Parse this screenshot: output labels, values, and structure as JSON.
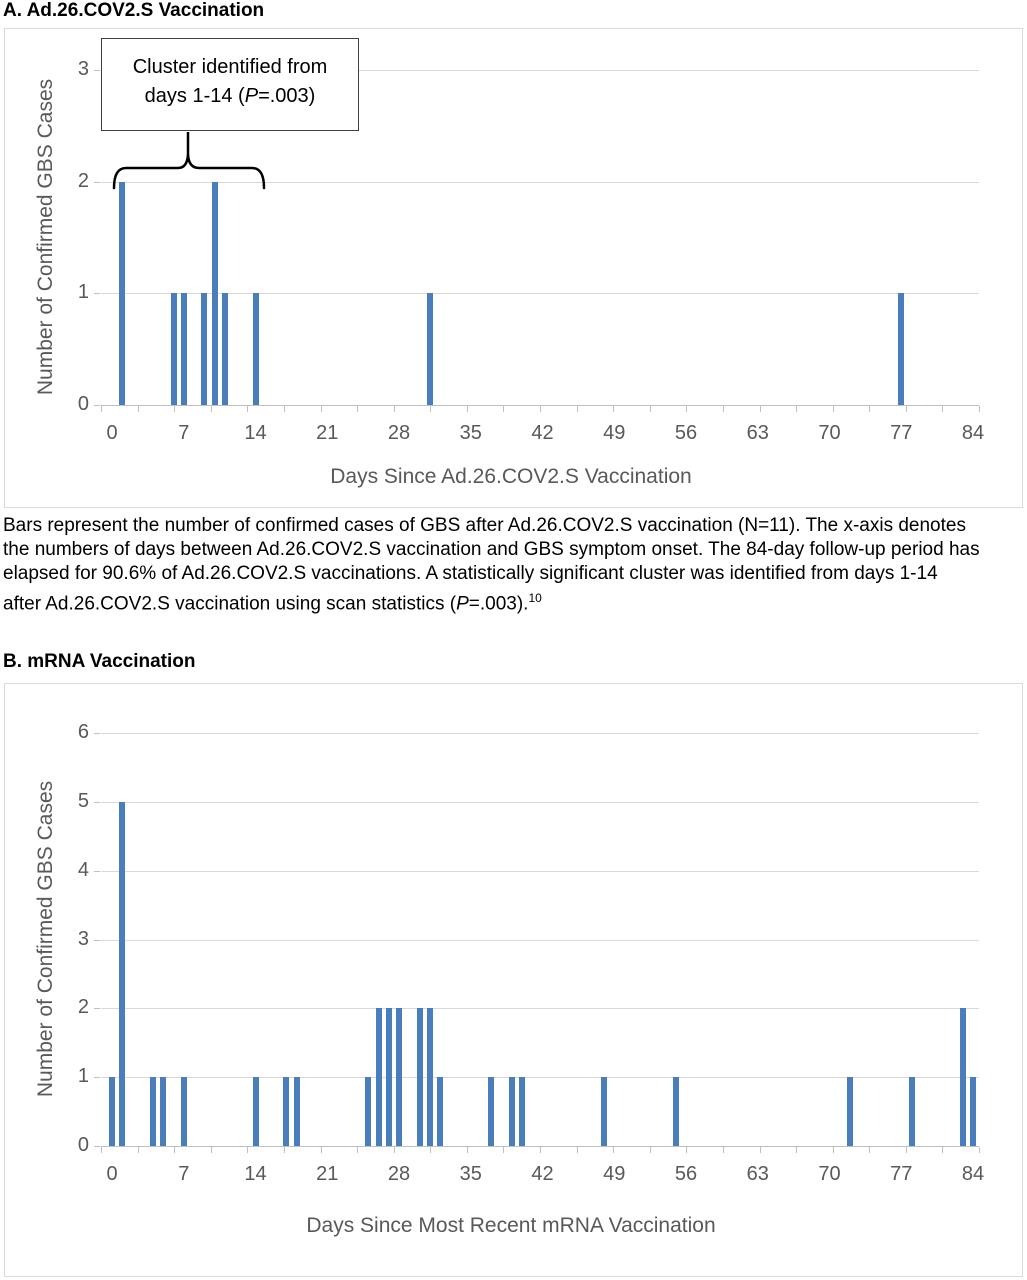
{
  "colors": {
    "bar_fill": "#4A7EBB",
    "gridline": "#D9D9D9",
    "axis_line": "#BFBFBF",
    "axis_text": "#595959",
    "text": "#000000",
    "chart_border": "#D9D9D9",
    "annotation_border": "#404040"
  },
  "figure": {
    "panel_a": {
      "title": "A. Ad.26.COV2.S Vaccination",
      "annotation": {
        "line1": "Cluster identified from",
        "line2_pre": "days 1-14 (",
        "p_italic": "P",
        "line2_post": "=.003)"
      },
      "caption": {
        "line1": "Bars represent the number of confirmed cases of GBS after Ad.26.COV2.S vaccination (N=11). The x-axis denotes",
        "line2": "the numbers of days between Ad.26.COV2.S vaccination and GBS symptom onset. The 84-day follow-up period has",
        "line3": "elapsed for 90.6% of Ad.26.COV2.S vaccinations. A statistically significant cluster was identified from days 1-14",
        "line4_pre": "after Ad.26.COV2.S vaccination using scan statistics (",
        "line4_p_italic": "P",
        "line4_post": "=.003).",
        "footnote_ref": "10"
      }
    },
    "panel_b": {
      "title": "B. mRNA Vaccination"
    }
  },
  "chart_data": [
    {
      "type": "bar",
      "panel": "A",
      "title": "A. Ad.26.COV2.S Vaccination",
      "xlabel": "Days Since Ad.26.COV2.S Vaccination",
      "ylabel": "Number of Confirmed GBS Cases",
      "x_days": [
        1,
        6,
        7,
        9,
        10,
        11,
        14,
        31,
        77
      ],
      "values": [
        2,
        1,
        1,
        1,
        2,
        1,
        1,
        1,
        1
      ],
      "xticks": [
        0,
        7,
        14,
        21,
        28,
        35,
        42,
        49,
        56,
        63,
        70,
        77,
        84
      ],
      "yticks": [
        0,
        1,
        2,
        3
      ],
      "xlim": [
        -1,
        85
      ],
      "ylim": [
        0,
        3
      ],
      "grid": true,
      "annotation": "Cluster identified from days 1-14 (P=.003)",
      "annotation_cluster_days": "1-14",
      "annotation_p_value": ".003"
    },
    {
      "type": "bar",
      "panel": "B",
      "title": "B. mRNA Vaccination",
      "xlabel": "Days Since Most Recent mRNA Vaccination",
      "ylabel": "Number of Confirmed GBS Cases",
      "x_days": [
        0,
        1,
        4,
        5,
        7,
        14,
        17,
        18,
        25,
        26,
        27,
        28,
        30,
        31,
        32,
        37,
        39,
        40,
        48,
        55,
        72,
        78,
        83,
        84
      ],
      "values": [
        1,
        5,
        1,
        1,
        1,
        1,
        1,
        1,
        1,
        2,
        2,
        2,
        2,
        2,
        1,
        1,
        1,
        1,
        1,
        1,
        1,
        1,
        2,
        1
      ],
      "xticks": [
        0,
        7,
        14,
        21,
        28,
        35,
        42,
        49,
        56,
        63,
        70,
        77,
        84
      ],
      "yticks": [
        0,
        1,
        2,
        3,
        4,
        5,
        6
      ],
      "xlim": [
        -1,
        85
      ],
      "ylim": [
        0,
        6
      ],
      "grid": true
    }
  ]
}
